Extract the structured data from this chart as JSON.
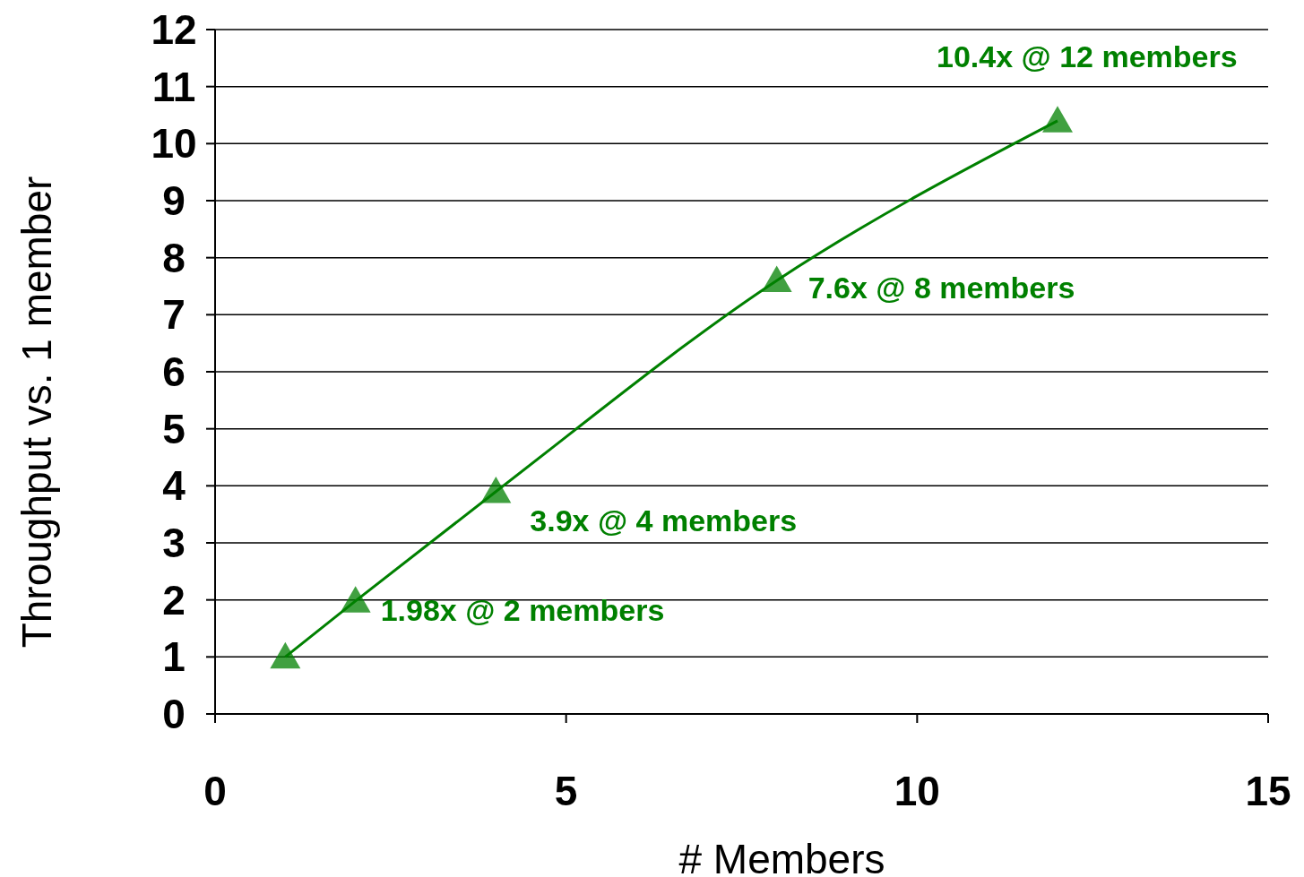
{
  "chart_data": {
    "type": "line",
    "xlabel": "# Members",
    "ylabel": "Throughput vs. 1 member",
    "x": [
      1,
      2,
      4,
      8,
      12
    ],
    "series": [
      {
        "color": "#008000",
        "values": [
          1,
          1.98,
          3.9,
          7.6,
          10.4
        ]
      }
    ],
    "xlim": [
      0,
      15
    ],
    "xticks": [
      0,
      5,
      10,
      15
    ],
    "ylim": [
      0,
      12
    ],
    "yticks": [
      0,
      1,
      2,
      3,
      4,
      5,
      6,
      7,
      8,
      9,
      10,
      11,
      12
    ],
    "grid": "y",
    "marker": "triangle",
    "line_style": "solid",
    "annotations": [
      {
        "text": "1.98x @ 2 members",
        "x": 2,
        "y": 1.98
      },
      {
        "text": "3.9x @ 4 members",
        "x": 4,
        "y": 3.9
      },
      {
        "text": "7.6x @ 8 members",
        "x": 8,
        "y": 7.6
      },
      {
        "text": "10.4x @ 12 members",
        "x": 12,
        "y": 10.4
      }
    ]
  }
}
